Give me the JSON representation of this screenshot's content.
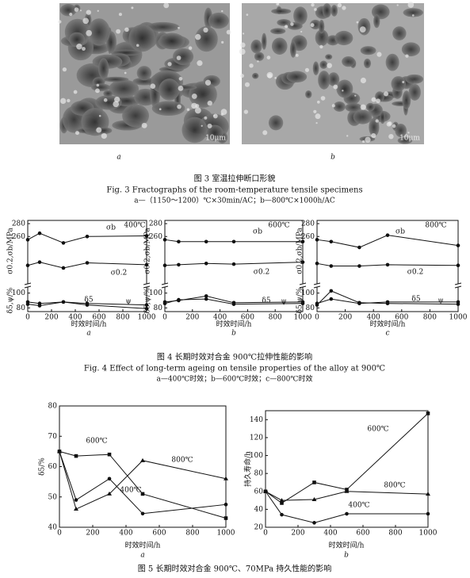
{
  "figure3": {
    "panels": [
      "a",
      "b"
    ],
    "scale_bars": [
      "10μm",
      "10μm"
    ],
    "caption_cn": "图 3  室温拉伸断口形貌",
    "caption_en": "Fig. 3  Fractographs of the room-temperature tensile specimens",
    "caption_note": "a—（1150～1200）℃×30min/AC；b—800℃×1000h/AC"
  },
  "figure4": {
    "caption_cn": "图 4  长期时效对合金 900℃拉伸性能的影响",
    "caption_en": "Fig. 4  Effect of long-term ageing on tensile properties of the alloy at 900℃",
    "caption_note": "a—400℃时效；b—600℃时效；c—800℃时效"
  },
  "figure5": {
    "caption_cn": "图 5  长期时效对合金 900℃、70MPa 持久性能的影响"
  },
  "chart_data": [
    {
      "type": "line",
      "panel_label": "a",
      "annotation": "400℃",
      "xlabel": "时效时间/h",
      "ylabel": "σ0.2,σb/MPa",
      "y2label": "δ5,ψ/%",
      "x": [
        0,
        100,
        300,
        500,
        1000
      ],
      "xlim": [
        0,
        1000
      ],
      "xticks": [
        0,
        200,
        400,
        600,
        800,
        1000
      ],
      "ylim": [
        190,
        285
      ],
      "yticks": [
        260,
        280
      ],
      "y2lim": [
        75,
        105
      ],
      "y2ticks": [
        80,
        100
      ],
      "series": [
        {
          "name": "σb",
          "color": "#111111",
          "values": [
            255,
            265,
            250,
            260,
            261
          ]
        },
        {
          "name": "σ0.2",
          "color": "#111111",
          "values": [
            215,
            220,
            211,
            219,
            216
          ]
        },
        {
          "name": "δ5",
          "color": "#111111",
          "axis": "y2",
          "values": [
            88,
            86,
            88,
            86,
            84
          ]
        },
        {
          "name": "ψ",
          "color": "#111111",
          "axis": "y2",
          "values": [
            85,
            83,
            88,
            84,
            79
          ]
        }
      ]
    },
    {
      "type": "line",
      "panel_label": "b",
      "annotation": "600℃",
      "xlabel": "时效时间/h",
      "ylabel": "σ0.2,σb/MPa",
      "y2label": "δ5,ψ/%",
      "x": [
        0,
        100,
        300,
        500,
        1000
      ],
      "xlim": [
        0,
        1000
      ],
      "xticks": [
        0,
        200,
        400,
        600,
        800,
        1000
      ],
      "ylim": [
        190,
        285
      ],
      "yticks": [
        260,
        280
      ],
      "y2lim": [
        75,
        105
      ],
      "y2ticks": [
        80,
        100
      ],
      "series": [
        {
          "name": "σb",
          "color": "#111111",
          "values": [
            255,
            252,
            252,
            252,
            252
          ]
        },
        {
          "name": "σ0.2",
          "color": "#111111",
          "values": [
            215,
            216,
            218,
            217,
            220
          ]
        },
        {
          "name": "δ5",
          "color": "#111111",
          "axis": "y2",
          "values": [
            88,
            90,
            96,
            87,
            88
          ]
        },
        {
          "name": "ψ",
          "color": "#111111",
          "axis": "y2",
          "values": [
            86,
            91,
            92,
            85,
            86
          ]
        }
      ]
    },
    {
      "type": "line",
      "panel_label": "c",
      "annotation": "800℃",
      "xlabel": "时效时间/h",
      "ylabel": "σ0.2,σb/MPa",
      "y2label": "δ5,ψ/%",
      "x": [
        0,
        100,
        300,
        500,
        1000
      ],
      "xlim": [
        0,
        1000
      ],
      "xticks": [
        0,
        200,
        400,
        600,
        800,
        1000
      ],
      "ylim": [
        190,
        285
      ],
      "yticks": [
        260,
        280
      ],
      "y2lim": [
        75,
        105
      ],
      "y2ticks": [
        80,
        100
      ],
      "series": [
        {
          "name": "σb",
          "color": "#111111",
          "values": [
            255,
            252,
            243,
            262,
            246
          ]
        },
        {
          "name": "σ0.2",
          "color": "#111111",
          "values": [
            218,
            214,
            214,
            216,
            215
          ]
        },
        {
          "name": "δ5",
          "color": "#111111",
          "axis": "y2",
          "values": [
            84,
            103,
            87,
            86,
            85
          ]
        },
        {
          "name": "ψ",
          "color": "#111111",
          "axis": "y2",
          "values": [
            86,
            92,
            86,
            88,
            88
          ]
        }
      ]
    },
    {
      "type": "line",
      "panel_label": "a",
      "xlabel": "时效时间/h",
      "ylabel": "δ5/%",
      "x": [
        0,
        100,
        300,
        500,
        1000
      ],
      "xlim": [
        0,
        1000
      ],
      "xticks": [
        0,
        200,
        400,
        600,
        800,
        1000
      ],
      "ylim": [
        40,
        80
      ],
      "yticks": [
        40,
        50,
        60,
        70,
        80
      ],
      "series": [
        {
          "name": "600℃",
          "color": "#111111",
          "values": [
            65,
            63.5,
            64,
            51,
            43
          ]
        },
        {
          "name": "800℃",
          "color": "#111111",
          "values": [
            65,
            46,
            51,
            62,
            56
          ]
        },
        {
          "name": "400℃",
          "color": "#111111",
          "values": [
            65,
            49,
            56,
            44.5,
            47.5
          ]
        }
      ]
    },
    {
      "type": "line",
      "panel_label": "b",
      "xlabel": "时效时间/h",
      "ylabel": "持久寿命/h",
      "x": [
        0,
        100,
        300,
        500,
        1000
      ],
      "xlim": [
        0,
        1000
      ],
      "xticks": [
        0,
        200,
        400,
        600,
        800,
        1000
      ],
      "ylim": [
        20,
        150
      ],
      "yticks": [
        20,
        40,
        60,
        80,
        100,
        120,
        140
      ],
      "series": [
        {
          "name": "600℃",
          "color": "#111111",
          "values": [
            60,
            47,
            70,
            62,
            147
          ]
        },
        {
          "name": "800℃",
          "color": "#111111",
          "values": [
            60,
            50,
            51,
            60,
            57
          ]
        },
        {
          "name": "400℃",
          "color": "#111111",
          "values": [
            60,
            34,
            25,
            35,
            35
          ]
        }
      ]
    }
  ]
}
